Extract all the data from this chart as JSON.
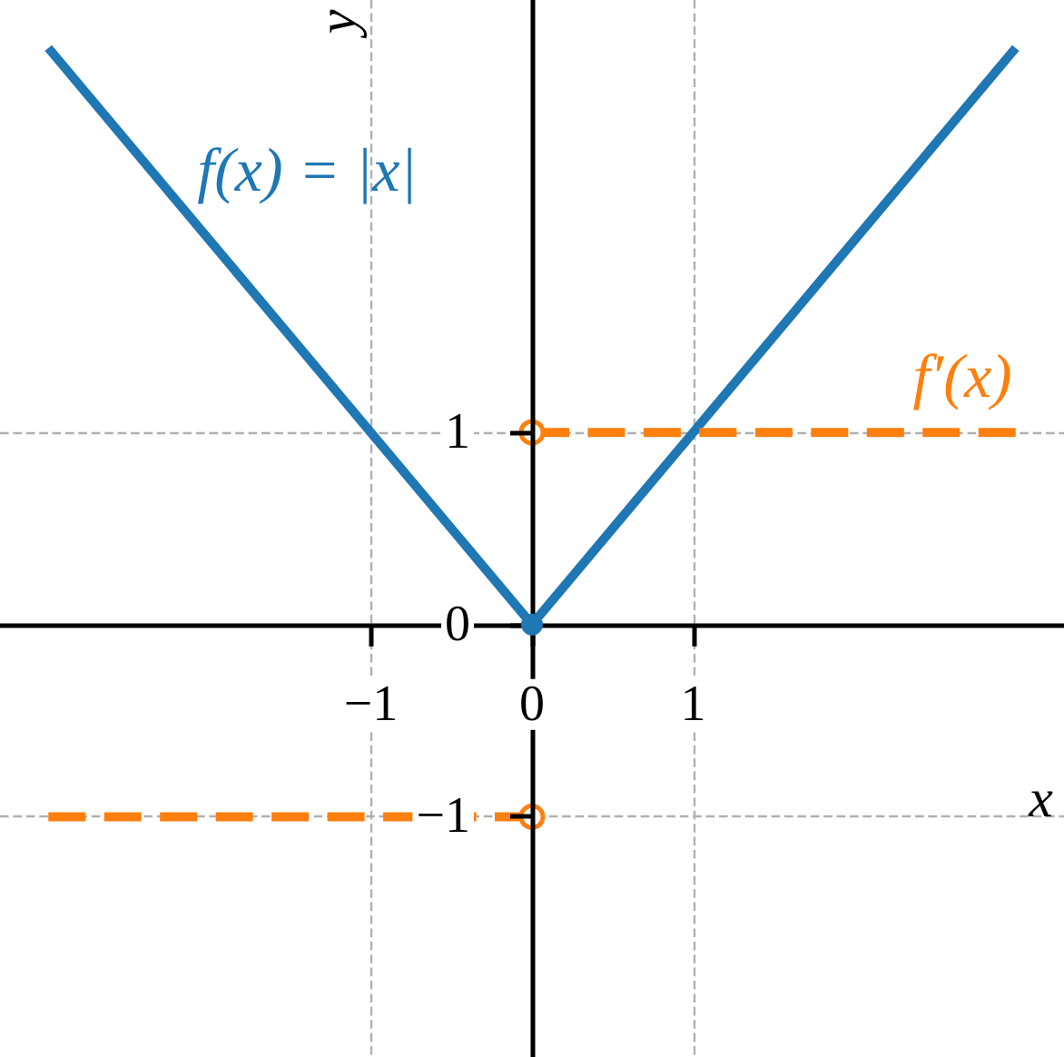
{
  "chart_data": {
    "type": "line",
    "xlabel": "x",
    "ylabel": "y",
    "xlim": [
      -3.3,
      3.3
    ],
    "ylim": [
      -2.25,
      3.25
    ],
    "xticks": [
      {
        "value": -1,
        "label": "−1"
      },
      0,
      1
    ],
    "yticks": [
      {
        "value": -1,
        "label": "−1"
      },
      0,
      1
    ],
    "grid": true,
    "series": [
      {
        "name": "f(x) = |x|",
        "color": "#1f77b4",
        "x": [
          -3,
          0,
          3
        ],
        "values": [
          3,
          0,
          3
        ]
      },
      {
        "name": "f′(x)",
        "color": "#ff7f0e",
        "x": [
          -3,
          0,
          null,
          0,
          3
        ],
        "values": [
          -1,
          -1,
          null,
          1,
          1
        ],
        "line_style": "dashed",
        "marker": "circle"
      },
      {
        "type": "scatter",
        "color": "#1f77b4",
        "x": [
          0
        ],
        "values": [
          0
        ],
        "marker": "circle"
      }
    ]
  }
}
